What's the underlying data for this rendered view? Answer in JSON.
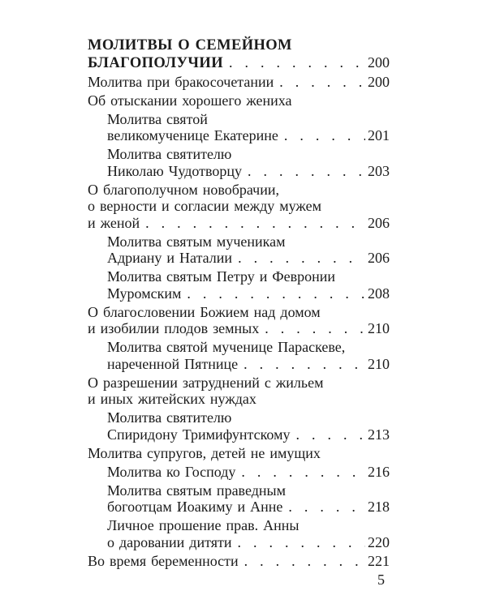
{
  "page": {
    "background": "#ffffff",
    "text_color": "#1b1b1b",
    "toc_entries": [
      {
        "style": "heading",
        "indent": 0,
        "lines": [
          "МОЛИТВЫ О СЕМЕЙНОМ",
          "БЛАГОПОЛУЧИИ"
        ],
        "page": "200"
      },
      {
        "style": "body",
        "indent": 0,
        "lines": [
          "Молитва при бракосочетании"
        ],
        "page": "200"
      },
      {
        "style": "body",
        "indent": 0,
        "lines": [
          "Об отыскании хорошего жениха"
        ],
        "page": ""
      },
      {
        "style": "body",
        "indent": 1,
        "lines": [
          "Молитва святой",
          "великомученице Екатерине"
        ],
        "page": "201"
      },
      {
        "style": "body",
        "indent": 1,
        "lines": [
          "Молитва святителю",
          "Николаю Чудотворцу"
        ],
        "page": "203"
      },
      {
        "style": "body",
        "indent": 0,
        "lines": [
          "О благополучном новобрачии,",
          "о верности и согласии между мужем",
          "и женой"
        ],
        "page": "206"
      },
      {
        "style": "body",
        "indent": 1,
        "lines": [
          "Молитва святым мученикам",
          "Адриану и Наталии"
        ],
        "page": "206"
      },
      {
        "style": "body",
        "indent": 1,
        "lines": [
          "Молитва святым Петру и Февронии",
          "Муромским"
        ],
        "page": "208"
      },
      {
        "style": "body",
        "indent": 0,
        "lines": [
          "О благословении Божием над домом",
          "и изобилии плодов земных"
        ],
        "page": "210"
      },
      {
        "style": "body",
        "indent": 1,
        "lines": [
          "Молитва святой мученице Параскеве,",
          "нареченной Пятнице"
        ],
        "page": "210"
      },
      {
        "style": "body",
        "indent": 0,
        "lines": [
          "О разрешении затруднений с жильем",
          "и иных житейских нуждах"
        ],
        "page": ""
      },
      {
        "style": "body",
        "indent": 1,
        "lines": [
          "Молитва святителю",
          "Спиридону Тримифунтскому"
        ],
        "page": "213"
      },
      {
        "style": "body",
        "indent": 0,
        "lines": [
          "Молитва супругов, детей не имущих"
        ],
        "page": ""
      },
      {
        "style": "body",
        "indent": 1,
        "lines": [
          "Молитва ко Господу"
        ],
        "page": "216"
      },
      {
        "style": "body",
        "indent": 1,
        "lines": [
          "Молитва святым праведным",
          "богоотцам Иоакиму и Анне"
        ],
        "page": "218"
      },
      {
        "style": "body",
        "indent": 1,
        "lines": [
          "Личное прошение прав. Анны",
          "о даровании дитяти"
        ],
        "page": "220"
      },
      {
        "style": "body",
        "indent": 0,
        "lines": [
          "Во время беременности"
        ],
        "page": "221"
      }
    ],
    "folio": "5"
  }
}
